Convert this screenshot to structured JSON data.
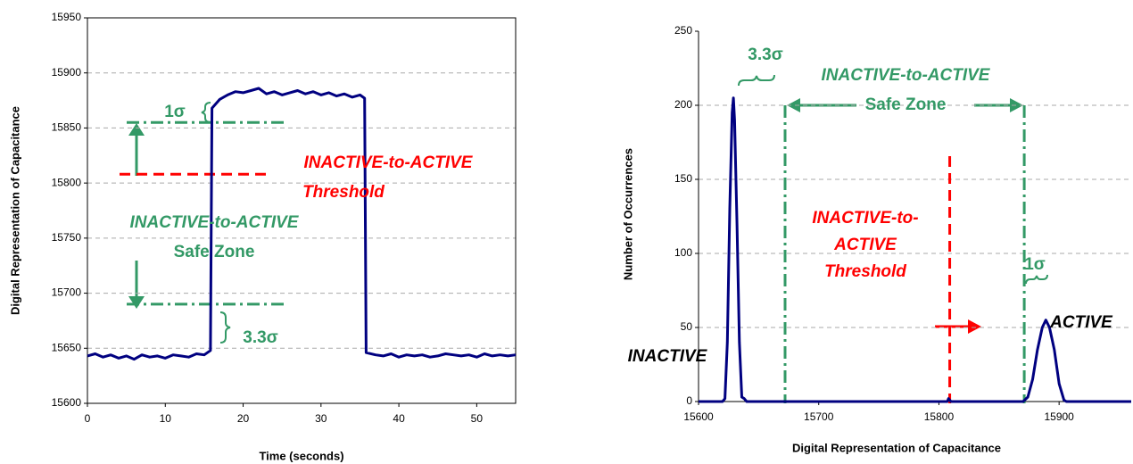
{
  "chart_data": [
    {
      "type": "line",
      "x_label": "Time (seconds)",
      "y_label": "Digital Representation of Capacitance",
      "x": [
        0,
        1,
        2,
        3,
        4,
        5,
        6,
        7,
        8,
        9,
        10,
        11,
        12,
        13,
        14,
        15,
        15.8,
        16,
        17,
        18,
        19,
        20,
        21,
        22,
        23,
        24,
        25,
        26,
        27,
        28,
        29,
        30,
        31,
        32,
        33,
        34,
        35,
        35.6,
        35.8,
        37,
        38,
        39,
        40,
        41,
        42,
        43,
        44,
        45,
        46,
        47,
        48,
        49,
        50,
        51,
        52,
        53,
        54,
        55
      ],
      "values": [
        15643,
        15645,
        15642,
        15644,
        15641,
        15643,
        15640,
        15644,
        15642,
        15643,
        15641,
        15644,
        15643,
        15642,
        15645,
        15644,
        15648,
        15868,
        15876,
        15880,
        15883,
        15882,
        15884,
        15886,
        15881,
        15883,
        15880,
        15882,
        15884,
        15881,
        15883,
        15880,
        15882,
        15879,
        15881,
        15878,
        15880,
        15877,
        15646,
        15644,
        15643,
        15645,
        15642,
        15644,
        15643,
        15644,
        15642,
        15643,
        15645,
        15644,
        15643,
        15644,
        15642,
        15645,
        15643,
        15644,
        15643,
        15644
      ],
      "color": "#000080",
      "xlim": [
        0,
        55
      ],
      "xticks": [
        0,
        10,
        20,
        30,
        40,
        50
      ],
      "ylim": [
        15600,
        15950
      ],
      "yticks": [
        15600,
        15650,
        15700,
        15750,
        15800,
        15850,
        15900,
        15950
      ],
      "grid": true,
      "frame": true,
      "ref_lines": [
        {
          "orient": "h",
          "value": 15855,
          "color": "#339966",
          "style": "dashdot"
        },
        {
          "orient": "h",
          "value": 15690,
          "color": "#339966",
          "style": "dashdot"
        },
        {
          "orient": "h",
          "value": 15808,
          "color": "#ff0000",
          "style": "dashed"
        }
      ],
      "annotations": [
        {
          "text": "1σ",
          "color": "#339966"
        },
        {
          "text": "INACTIVE-to-ACTIVE",
          "color": "#ff0000"
        },
        {
          "text": "Threshold",
          "color": "#ff0000"
        },
        {
          "text": "INACTIVE-to-ACTIVE",
          "color": "#339966"
        },
        {
          "text": "Safe Zone",
          "color": "#339966"
        },
        {
          "text": "3.3σ",
          "color": "#339966"
        }
      ]
    },
    {
      "type": "line",
      "x_label": "Digital Representation of Capacitance",
      "y_label": "Number of Occurrences",
      "x": [
        15600,
        15620,
        15622,
        15624,
        15626,
        15628,
        15629,
        15630,
        15632,
        15634,
        15636,
        15638,
        15640,
        15700,
        15807,
        15808,
        15810,
        15870,
        15874,
        15878,
        15882,
        15886,
        15889,
        15892,
        15896,
        15900,
        15904,
        15906,
        15960
      ],
      "values": [
        0,
        0,
        2,
        40,
        130,
        195,
        205,
        190,
        120,
        40,
        3,
        2,
        0,
        0,
        0,
        2,
        0,
        0,
        3,
        15,
        35,
        50,
        55,
        50,
        35,
        12,
        1,
        0,
        0
      ],
      "color": "#000080",
      "xlim": [
        15600,
        15960
      ],
      "xticks": [
        15600,
        15700,
        15800,
        15900
      ],
      "ylim": [
        0,
        250
      ],
      "yticks": [
        0,
        50,
        100,
        150,
        200,
        250
      ],
      "grid": true,
      "frame": false,
      "ref_lines": [
        {
          "orient": "v",
          "value": 15672,
          "color": "#339966",
          "style": "dashdot"
        },
        {
          "orient": "v",
          "value": 15871,
          "color": "#339966",
          "style": "dashdot"
        },
        {
          "orient": "v",
          "value": 15809,
          "color": "#ff0000",
          "style": "dashed"
        }
      ],
      "annotations": [
        {
          "text": "3.3σ",
          "color": "#339966"
        },
        {
          "text": "INACTIVE-to-ACTIVE",
          "color": "#339966"
        },
        {
          "text": "Safe Zone",
          "color": "#339966"
        },
        {
          "text": "INACTIVE-to-",
          "color": "#ff0000"
        },
        {
          "text": "ACTIVE",
          "color": "#ff0000"
        },
        {
          "text": "Threshold",
          "color": "#ff0000"
        },
        {
          "text": "1σ",
          "color": "#339966"
        },
        {
          "text": "ACTIVE",
          "color": "#000000"
        },
        {
          "text": "INACTIVE",
          "color": "#000000"
        }
      ]
    }
  ]
}
